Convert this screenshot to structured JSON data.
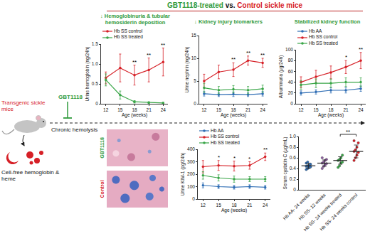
{
  "diagram": {
    "title": [
      "GBT1118-treated",
      "vs.",
      "Control sickle mice"
    ],
    "left": {
      "model": "Transgenic sickle mice",
      "drug": "GBT1118",
      "process": "Chronic hemolysis",
      "product": "Cell-free hemoglobin & heme"
    },
    "histology": {
      "labels": [
        "GBT1118",
        "Control"
      ]
    }
  },
  "chart_data": [
    {
      "type": "line",
      "title": "↓ Hemoglobinuria & tubular hemosiderin deposition",
      "x_label": "Age (weeks)",
      "y_label": "Urine hemoglobin (ng/24h)",
      "x": [
        12,
        15,
        18,
        21,
        24
      ],
      "xlim": [
        11,
        25
      ],
      "xticks": [
        12,
        15,
        18,
        21,
        24
      ],
      "ylim": [
        0,
        1.5
      ],
      "yticks": [
        0,
        0.5,
        {
          "value": 1,
          "label": "1.0"
        },
        1.5
      ],
      "grid": false,
      "legend": "top",
      "series": [
        {
          "name": "Hb SS control",
          "color": "#d62027",
          "values": [
            0.65,
            0.9,
            0.72,
            0.85,
            1.05
          ],
          "errors": [
            0.15,
            0.35,
            0.25,
            0.3,
            0.35
          ]
        },
        {
          "name": "Hb SS treated",
          "color": "#3aa648",
          "values": [
            0.6,
            0.22,
            0.05,
            0.03,
            0.02
          ],
          "errors": [
            0.15,
            0.1,
            0.03,
            0.02,
            0.02
          ]
        }
      ],
      "significance": [
        {
          "x": 18,
          "label": "**"
        },
        {
          "x": 21,
          "label": "**"
        },
        {
          "x": 24,
          "label": "**"
        }
      ]
    },
    {
      "type": "line",
      "title": "↓ Kidney injury biomarkers",
      "x_label": "Age (weeks)",
      "y_label": "Urine nephrin (ng/24h)",
      "x": [
        12,
        15,
        18,
        21,
        24
      ],
      "xlim": [
        11,
        25
      ],
      "xticks": [
        12,
        15,
        18,
        21,
        24
      ],
      "ylim": [
        0,
        15
      ],
      "yticks": [
        0,
        5,
        10,
        15
      ],
      "grid": false,
      "series": [
        {
          "name": "Hb AA",
          "color": "#2e6db4",
          "values": [
            2.2,
            2.0,
            2.1,
            2.0,
            2.2
          ],
          "errors": [
            0.5,
            0.4,
            0.5,
            0.4,
            0.5
          ]
        },
        {
          "name": "Hb SS control",
          "color": "#d62027",
          "values": [
            5.0,
            7.0,
            7.5,
            9.5,
            9.0
          ],
          "errors": [
            1.5,
            1.5,
            1.5,
            1.0,
            1.0
          ]
        },
        {
          "name": "Hb SS treated",
          "color": "#3aa648",
          "values": [
            3.5,
            3.0,
            3.2,
            3.0,
            3.3
          ],
          "errors": [
            1.0,
            0.8,
            0.8,
            0.8,
            0.8
          ]
        }
      ],
      "significance": [
        {
          "x": 18,
          "label": "**"
        },
        {
          "x": 21,
          "label": "**"
        },
        {
          "x": 24,
          "label": "**"
        }
      ]
    },
    {
      "type": "line",
      "title": "Stabilized kidney function",
      "x_label": "Age (weeks)",
      "y_label": "Albuminuria (μg/24h)",
      "x": [
        12,
        15,
        18,
        21,
        24
      ],
      "xlim": [
        11,
        25
      ],
      "xticks": [
        12,
        15,
        18,
        21,
        24
      ],
      "ylim": [
        0,
        100
      ],
      "yticks": [
        0,
        20,
        40,
        60,
        80,
        100
      ],
      "grid": false,
      "legend": "top",
      "series": [
        {
          "name": "Hb AA",
          "color": "#2e6db4",
          "values": [
            20,
            22,
            25,
            25,
            28
          ],
          "errors": [
            4,
            4,
            5,
            5,
            5
          ]
        },
        {
          "name": "Hb SS control",
          "color": "#d62027",
          "values": [
            40,
            50,
            58,
            68,
            80
          ],
          "errors": [
            10,
            12,
            12,
            12,
            15
          ]
        },
        {
          "name": "Hb SS treated",
          "color": "#3aa648",
          "values": [
            35,
            38,
            38,
            40,
            40
          ],
          "errors": [
            8,
            8,
            8,
            8,
            8
          ]
        }
      ],
      "significance": [
        {
          "x": 21,
          "label": "*"
        },
        {
          "x": 24,
          "label": "**"
        }
      ]
    },
    {
      "type": "line",
      "x_label": "Age (weeks)",
      "y_label": "Urine KIM-1 (pg/24h)",
      "x": [
        12,
        15,
        18,
        21,
        24
      ],
      "xlim": [
        11,
        25
      ],
      "xticks": [
        12,
        15,
        18,
        21,
        24
      ],
      "ylim": [
        0,
        400
      ],
      "yticks": [
        0,
        100,
        200,
        300,
        400
      ],
      "grid": false,
      "legend": "top",
      "series": [
        {
          "name": "Hb AA",
          "color": "#2e6db4",
          "values": [
            110,
            100,
            95,
            100,
            95
          ],
          "errors": [
            20,
            15,
            15,
            15,
            15
          ]
        },
        {
          "name": "Hb SS control",
          "color": "#d62027",
          "values": [
            260,
            270,
            265,
            270,
            340
          ],
          "errors": [
            50,
            40,
            40,
            30,
            30
          ]
        },
        {
          "name": "Hb SS treated",
          "color": "#3aa648",
          "values": [
            190,
            170,
            160,
            160,
            160
          ],
          "errors": [
            30,
            25,
            25,
            20,
            20
          ]
        }
      ],
      "significance": [
        {
          "x": 15,
          "label": "*"
        },
        {
          "x": 18,
          "label": "*"
        },
        {
          "x": 21,
          "label": "*"
        },
        {
          "x": 24,
          "label": "**"
        }
      ]
    },
    {
      "type": "scatter",
      "y_label": "Serum cystatin C (μg/mL)",
      "categories": [
        "Hb AA- 24 weeks",
        "Hb SS- 12 weeks",
        "Hb SS- 24 weeks treated",
        "Hb SS- 24 weeks control"
      ],
      "colors": [
        "#2e6db4",
        "#8e5ea2",
        "#3aa648",
        "#d62027"
      ],
      "points": [
        [
          0.38,
          0.4,
          0.42,
          0.43,
          0.44,
          0.45,
          0.46,
          0.48,
          0.5,
          0.52
        ],
        [
          0.4,
          0.44,
          0.47,
          0.49,
          0.5,
          0.52,
          0.55,
          0.57,
          0.6
        ],
        [
          0.42,
          0.45,
          0.5,
          0.52,
          0.55,
          0.57,
          0.6,
          0.65
        ],
        [
          0.55,
          0.6,
          0.65,
          0.7,
          0.72,
          0.75,
          0.8,
          0.88,
          0.92
        ]
      ],
      "means": [
        0.45,
        0.5,
        0.55,
        0.72
      ],
      "errors": [
        0.05,
        0.06,
        0.07,
        0.12
      ],
      "ylim": [
        0,
        1
      ],
      "yticks": [
        0,
        0.2,
        0.4,
        0.6,
        0.8,
        {
          "value": 1,
          "label": "1.0"
        }
      ],
      "grid": false,
      "comparisons": [
        {
          "from": "Hb SS- 24 weeks treated",
          "to": "Hb SS- 24 weeks control",
          "label": "**"
        }
      ]
    }
  ]
}
